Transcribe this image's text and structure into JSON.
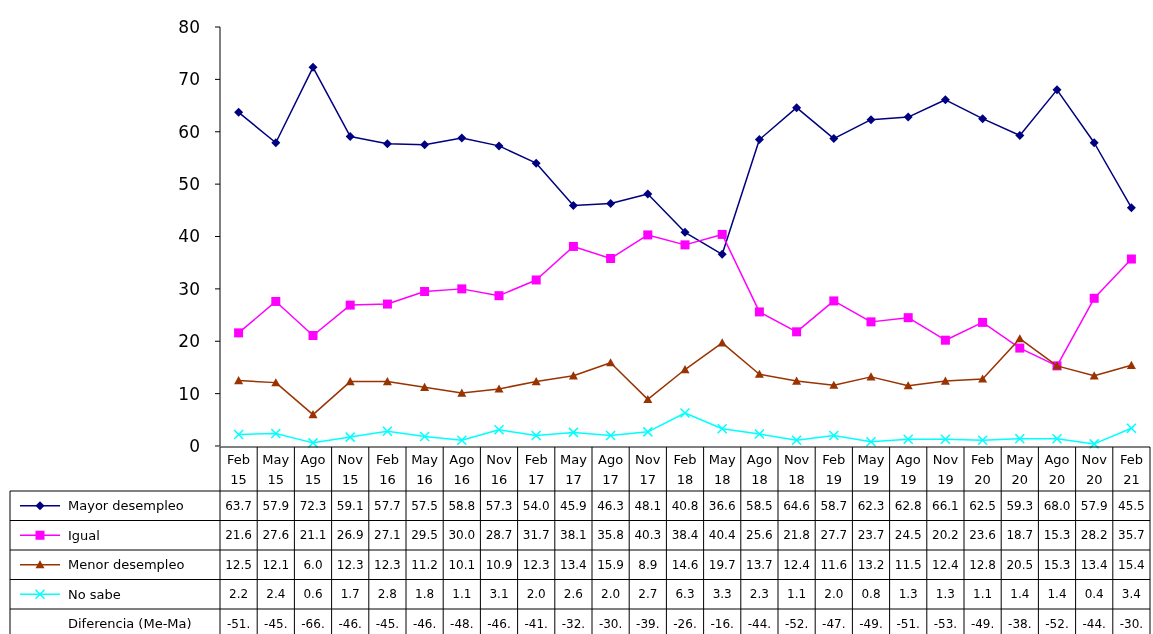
{
  "chart_data": {
    "type": "line",
    "categories": [
      "Feb 15",
      "May 15",
      "Ago 15",
      "Nov 15",
      "Feb 16",
      "May 16",
      "Ago 16",
      "Nov 16",
      "Feb 17",
      "May 17",
      "Ago 17",
      "Nov 17",
      "Feb 18",
      "May 18",
      "Ago 18",
      "Nov 18",
      "Feb 19",
      "May 19",
      "Ago 19",
      "Nov 19",
      "Feb 20",
      "May 20",
      "Ago 20",
      "Nov 20",
      "Feb 21"
    ],
    "series": [
      {
        "name": "Mayor desempleo",
        "color": "#000080",
        "marker": "diamond",
        "values": [
          63.7,
          57.9,
          72.3,
          59.1,
          57.7,
          57.5,
          58.8,
          57.3,
          54.0,
          45.9,
          46.3,
          48.1,
          40.8,
          36.6,
          58.5,
          64.6,
          58.7,
          62.3,
          62.8,
          66.1,
          62.5,
          59.3,
          68.0,
          57.9,
          45.5
        ],
        "value_labels": [
          "63.7",
          "57.9",
          "72.3",
          "59.1",
          "57.7",
          "57.5",
          "58.8",
          "57.3",
          "54.0",
          "45.9",
          "46.3",
          "48.1",
          "40.8",
          "36.6",
          "58.5",
          "64.6",
          "58.7",
          "62.3",
          "62.8",
          "66.1",
          "62.5",
          "59.3",
          "68.0",
          "57.9",
          "45.5"
        ]
      },
      {
        "name": "Igual",
        "color": "#ff00ff",
        "marker": "square",
        "values": [
          21.6,
          27.6,
          21.1,
          26.9,
          27.1,
          29.5,
          30.0,
          28.7,
          31.7,
          38.1,
          35.8,
          40.3,
          38.4,
          40.4,
          25.6,
          21.8,
          27.7,
          23.7,
          24.5,
          20.2,
          23.6,
          18.7,
          15.3,
          28.2,
          35.7
        ],
        "value_labels": [
          "21.6",
          "27.6",
          "21.1",
          "26.9",
          "27.1",
          "29.5",
          "30.0",
          "28.7",
          "31.7",
          "38.1",
          "35.8",
          "40.3",
          "38.4",
          "40.4",
          "25.6",
          "21.8",
          "27.7",
          "23.7",
          "24.5",
          "20.2",
          "23.6",
          "18.7",
          "15.3",
          "28.2",
          "35.7"
        ]
      },
      {
        "name": "Menor desempleo",
        "color": "#993300",
        "marker": "triangle",
        "values": [
          12.5,
          12.1,
          6.0,
          12.3,
          12.3,
          11.2,
          10.1,
          10.9,
          12.3,
          13.4,
          15.9,
          8.9,
          14.6,
          19.7,
          13.7,
          12.4,
          11.6,
          13.2,
          11.5,
          12.4,
          12.8,
          20.5,
          15.3,
          13.4,
          15.4
        ],
        "value_labels": [
          "12.5",
          "12.1",
          "6.0",
          "12.3",
          "12.3",
          "11.2",
          "10.1",
          "10.9",
          "12.3",
          "13.4",
          "15.9",
          "8.9",
          "14.6",
          "19.7",
          "13.7",
          "12.4",
          "11.6",
          "13.2",
          "11.5",
          "12.4",
          "12.8",
          "20.5",
          "15.3",
          "13.4",
          "15.4"
        ]
      },
      {
        "name": "No sabe",
        "color": "#00ffff",
        "marker": "cross",
        "values": [
          2.2,
          2.4,
          0.6,
          1.7,
          2.8,
          1.8,
          1.1,
          3.1,
          2.0,
          2.6,
          2.0,
          2.7,
          6.3,
          3.3,
          2.3,
          1.1,
          2.0,
          0.8,
          1.3,
          1.3,
          1.1,
          1.4,
          1.4,
          0.4,
          3.4
        ],
        "value_labels": [
          "2.2",
          "2.4",
          "0.6",
          "1.7",
          "2.8",
          "1.8",
          "1.1",
          "3.1",
          "2.0",
          "2.6",
          "2.0",
          "2.7",
          "6.3",
          "3.3",
          "2.3",
          "1.1",
          "2.0",
          "0.8",
          "1.3",
          "1.3",
          "1.1",
          "1.4",
          "1.4",
          "0.4",
          "3.4"
        ]
      }
    ],
    "ylim": [
      0,
      80
    ],
    "yticks": [
      0,
      10,
      20,
      30,
      40,
      50,
      60,
      70,
      80
    ],
    "grid": false,
    "legend": "bottom",
    "line_style": "solid",
    "annotations": [
      "Diferencia (Me-Ma)",
      "-51.",
      "-45.",
      "-66.",
      "-46.",
      "-45.",
      "-46.",
      "-48.",
      "-46.",
      "-41.",
      "-32.",
      "-30.",
      "-39.",
      "-26.",
      "-16.",
      "-44.",
      "-52.",
      "-47.",
      "-49.",
      "-51.",
      "-53.",
      "-49.",
      "-38.",
      "-52.",
      "-44.",
      "-30."
    ]
  }
}
